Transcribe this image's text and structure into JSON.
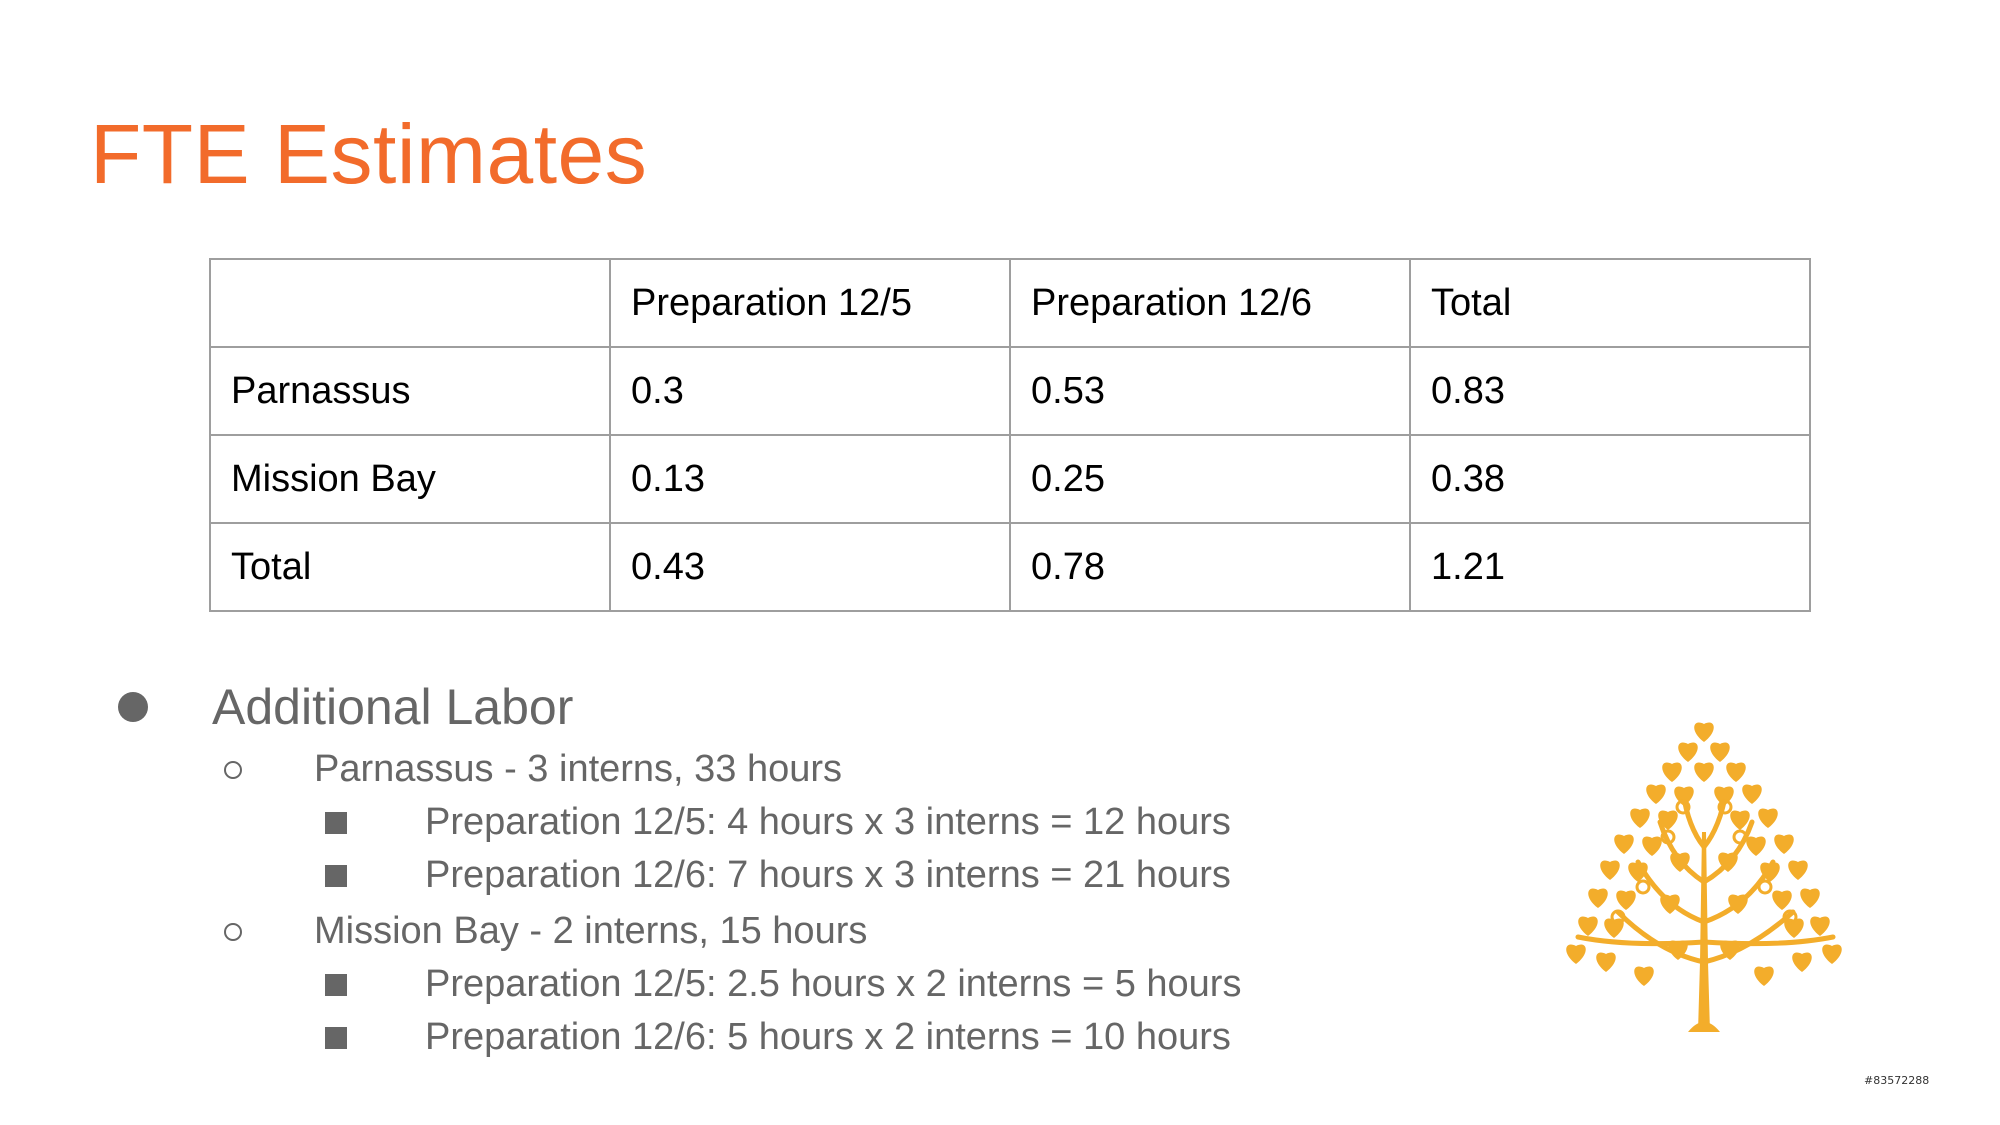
{
  "slide": {
    "title": "FTE Estimates",
    "title_color": "#f26b2b",
    "text_color": "#666666",
    "tree_color": "#f3ad2b"
  },
  "table": {
    "header": [
      "",
      "Preparation 12/5",
      "Preparation 12/6",
      "Total"
    ],
    "rows": [
      [
        "Parnassus",
        "0.3",
        "0.53",
        "0.83"
      ],
      [
        "Mission Bay",
        "0.13",
        "0.25",
        "0.38"
      ],
      [
        "Total",
        "0.43",
        "0.78",
        "1.21"
      ]
    ]
  },
  "bullets": {
    "heading": "Additional Labor",
    "groups": [
      {
        "label": "Parnassus - 3 interns, 33 hours",
        "items": [
          "Preparation 12/5: 4 hours x 3 interns = 12 hours",
          "Preparation 12/6: 7 hours x 3 interns = 21 hours"
        ]
      },
      {
        "label": "Mission Bay - 2 interns, 15 hours",
        "items": [
          "Preparation 12/5: 2.5 hours x 2 interns = 5 hours",
          "Preparation 12/6: 5 hours x 2 interns = 10 hours"
        ]
      }
    ]
  },
  "image": {
    "icon": "bodhi-tree-icon",
    "stock_id": "#83572288"
  }
}
